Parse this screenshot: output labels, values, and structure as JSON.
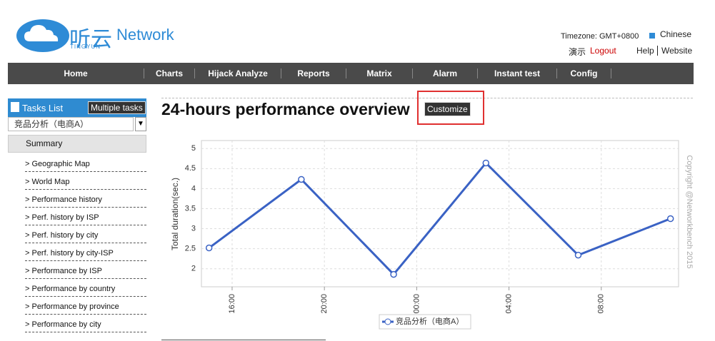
{
  "header": {
    "brand": "Network",
    "logo_cn": "听云",
    "logo_en": "TINGYUN",
    "timezone": "Timezone: GMT+0800",
    "language": "Chinese",
    "user": "演示",
    "logout": "Logout",
    "help": "Help",
    "website": "Website"
  },
  "nav": [
    "Home",
    "Charts",
    "Hijack Analyze",
    "Reports",
    "Matrix",
    "Alarm",
    "Instant test",
    "Config"
  ],
  "sidebar": {
    "title": "Tasks List",
    "button": "Multiple tasks",
    "search": "竞品分析（电商A）",
    "section": "Summary",
    "items": [
      "> Geographic Map",
      "> World Map",
      "> Performance history",
      "> Perf. history by ISP",
      "> Perf. history by city",
      "> Perf. history by city-ISP",
      "> Performance by ISP",
      "> Performance by country",
      "> Performance by province",
      "> Performance by city"
    ]
  },
  "main": {
    "title": "24-hours performance overview",
    "button": "Customize"
  },
  "chart_data": {
    "type": "line",
    "y_label": "Total duration(sec.)",
    "credit": "Copyright @Networkbench 2015",
    "x": [
      15,
      19,
      23,
      27,
      31,
      35
    ],
    "xlim": [
      14.67,
      35.35
    ],
    "xticks": [
      {
        "value": 16,
        "label": "16:00"
      },
      {
        "value": 20,
        "label": "20:00"
      },
      {
        "value": 24,
        "label": "00:00"
      },
      {
        "value": 28,
        "label": "04:00"
      },
      {
        "value": 32,
        "label": "08:00"
      }
    ],
    "ylim": [
      1.55,
      5.2
    ],
    "yticks": [
      2,
      2.5,
      3,
      3.5,
      4,
      4.5,
      5
    ],
    "grid": true,
    "series": [
      {
        "name": "竞品分析（电商A）",
        "color": "#3a62c4",
        "values": [
          2.52,
          4.23,
          1.86,
          4.64,
          2.34,
          3.25
        ]
      }
    ]
  }
}
